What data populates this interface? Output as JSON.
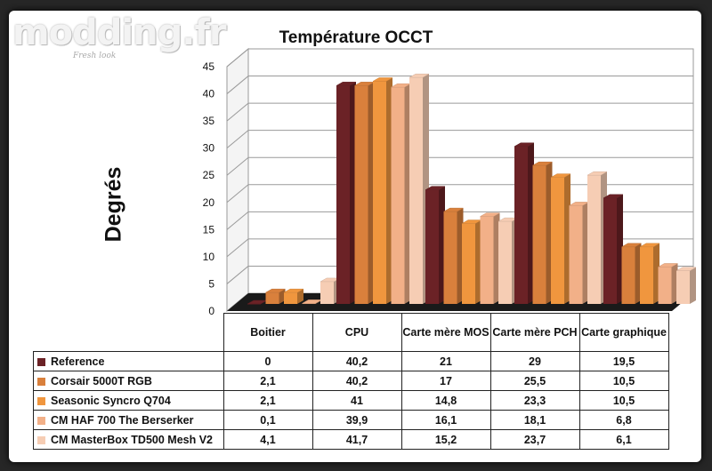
{
  "logo": {
    "text": "modding.fr",
    "tagline": "Fresh look"
  },
  "chart_data": {
    "type": "bar",
    "title": "Température OCCT",
    "ylabel": "Degrés",
    "xlabel": "",
    "ylim": [
      0,
      45
    ],
    "yticks": [
      0,
      5,
      10,
      15,
      20,
      25,
      30,
      35,
      40,
      45
    ],
    "categories": [
      "Boitier",
      "CPU",
      "Carte mère MOS",
      "Carte mère PCH",
      "Carte graphique"
    ],
    "series": [
      {
        "name": "Reference",
        "color": "#6b2226",
        "values": [
          0,
          40.2,
          21,
          29,
          19.5
        ],
        "labels": [
          "0",
          "40,2",
          "21",
          "29",
          "19,5"
        ]
      },
      {
        "name": "Corsair 5000T RGB",
        "color": "#d9803c",
        "values": [
          2.1,
          40.2,
          17,
          25.5,
          10.5
        ],
        "labels": [
          "2,1",
          "40,2",
          "17",
          "25,5",
          "10,5"
        ]
      },
      {
        "name": "Seasonic Syncro Q704",
        "color": "#f0963e",
        "values": [
          2.1,
          41,
          14.8,
          23.3,
          10.5
        ],
        "labels": [
          "2,1",
          "41",
          "14,8",
          "23,3",
          "10,5"
        ]
      },
      {
        "name": "CM HAF 700 The Berserker",
        "color": "#f2b088",
        "values": [
          0.1,
          39.9,
          16.1,
          18.1,
          6.8
        ],
        "labels": [
          "0,1",
          "39,9",
          "16,1",
          "18,1",
          "6,8"
        ]
      },
      {
        "name": "CM MasterBox TD500 Mesh V2",
        "color": "#f6cdb4",
        "values": [
          4.1,
          41.7,
          15.2,
          23.7,
          6.1
        ],
        "labels": [
          "4,1",
          "41,7",
          "15,2",
          "23,7",
          "6,1"
        ]
      }
    ]
  }
}
